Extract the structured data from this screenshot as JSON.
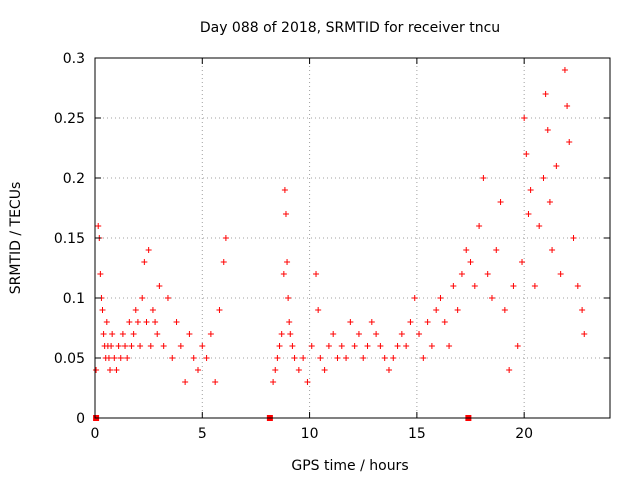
{
  "chart_data": {
    "type": "scatter",
    "title": "Day 088 of 2018, SRMTID for receiver tncu",
    "xlabel": "GPS time / hours",
    "ylabel": "SRMTID / TECUs",
    "xlim": [
      0,
      24
    ],
    "ylim": [
      0,
      0.3
    ],
    "x_ticks": [
      0,
      5,
      10,
      15,
      20
    ],
    "x_tick_labels": [
      "0",
      "5",
      "10",
      "15",
      "20"
    ],
    "y_ticks": [
      0,
      0.05,
      0.1,
      0.15,
      0.2,
      0.25,
      0.3
    ],
    "y_tick_labels": [
      "0",
      "0.05",
      "0.1",
      "0.15",
      "0.2",
      "0.25",
      "0.3"
    ],
    "grid": true,
    "legend": "none",
    "marker": "plus",
    "color": "#ff0000",
    "series": [
      {
        "x": [
          0.05,
          0.15,
          0.2,
          0.25,
          0.3,
          0.35,
          0.4,
          0.45,
          0.5,
          0.55,
          0.6,
          0.65,
          0.7,
          0.75,
          0.8,
          0.9,
          1.0,
          1.1,
          1.2,
          1.3,
          1.4,
          1.5,
          1.6,
          1.7,
          1.8,
          1.9,
          2.0,
          2.1,
          2.2,
          2.3,
          2.4,
          2.5,
          2.6,
          2.7,
          2.8,
          2.9,
          3.0,
          3.2,
          3.4,
          3.6,
          3.8,
          4.0,
          4.2,
          4.4,
          4.6,
          4.8,
          5.0,
          5.2,
          5.4,
          5.6,
          5.8,
          6.0,
          6.1,
          8.3,
          8.4,
          8.5,
          8.6,
          8.7,
          8.8,
          8.85,
          8.9,
          8.95,
          9.0,
          9.05,
          9.1,
          9.2,
          9.3,
          9.5,
          9.7,
          9.9,
          10.1,
          10.3,
          10.4,
          10.5,
          10.7,
          10.9,
          11.1,
          11.3,
          11.5,
          11.7,
          11.9,
          12.1,
          12.3,
          12.5,
          12.7,
          12.9,
          13.1,
          13.3,
          13.5,
          13.7,
          13.9,
          14.1,
          14.3,
          14.5,
          14.7,
          14.9,
          15.1,
          15.3,
          15.5,
          15.7,
          15.9,
          16.1,
          16.3,
          16.5,
          16.7,
          16.9,
          17.1,
          17.3,
          17.5,
          17.7,
          17.9,
          18.1,
          18.3,
          18.5,
          18.7,
          18.9,
          19.1,
          19.3,
          19.5,
          19.7,
          19.9,
          20.0,
          20.1,
          20.2,
          20.3,
          20.5,
          20.7,
          20.9,
          21.0,
          21.1,
          21.2,
          21.3,
          21.5,
          21.7,
          21.9,
          22.0,
          22.1,
          22.3,
          22.5,
          22.7,
          22.8
        ],
        "y": [
          0.04,
          0.16,
          0.15,
          0.12,
          0.1,
          0.09,
          0.07,
          0.06,
          0.05,
          0.08,
          0.06,
          0.05,
          0.04,
          0.06,
          0.07,
          0.05,
          0.04,
          0.06,
          0.05,
          0.07,
          0.06,
          0.05,
          0.08,
          0.06,
          0.07,
          0.09,
          0.08,
          0.06,
          0.1,
          0.13,
          0.08,
          0.14,
          0.06,
          0.09,
          0.08,
          0.07,
          0.11,
          0.06,
          0.1,
          0.05,
          0.08,
          0.06,
          0.03,
          0.07,
          0.05,
          0.04,
          0.06,
          0.05,
          0.07,
          0.03,
          0.09,
          0.13,
          0.15,
          0.03,
          0.04,
          0.05,
          0.06,
          0.07,
          0.12,
          0.19,
          0.17,
          0.13,
          0.1,
          0.08,
          0.07,
          0.06,
          0.05,
          0.04,
          0.05,
          0.03,
          0.06,
          0.12,
          0.09,
          0.05,
          0.04,
          0.06,
          0.07,
          0.05,
          0.06,
          0.05,
          0.08,
          0.06,
          0.07,
          0.05,
          0.06,
          0.08,
          0.07,
          0.06,
          0.05,
          0.04,
          0.05,
          0.06,
          0.07,
          0.06,
          0.08,
          0.1,
          0.07,
          0.05,
          0.08,
          0.06,
          0.09,
          0.1,
          0.08,
          0.06,
          0.11,
          0.09,
          0.12,
          0.14,
          0.13,
          0.11,
          0.16,
          0.2,
          0.12,
          0.1,
          0.14,
          0.18,
          0.09,
          0.04,
          0.11,
          0.06,
          0.13,
          0.25,
          0.22,
          0.17,
          0.19,
          0.11,
          0.16,
          0.2,
          0.27,
          0.24,
          0.18,
          0.14,
          0.21,
          0.12,
          0.29,
          0.26,
          0.23,
          0.15,
          0.11,
          0.09,
          0.07
        ]
      }
    ],
    "x_missing_markers": [
      0.05,
      8.15,
      17.4
    ]
  }
}
